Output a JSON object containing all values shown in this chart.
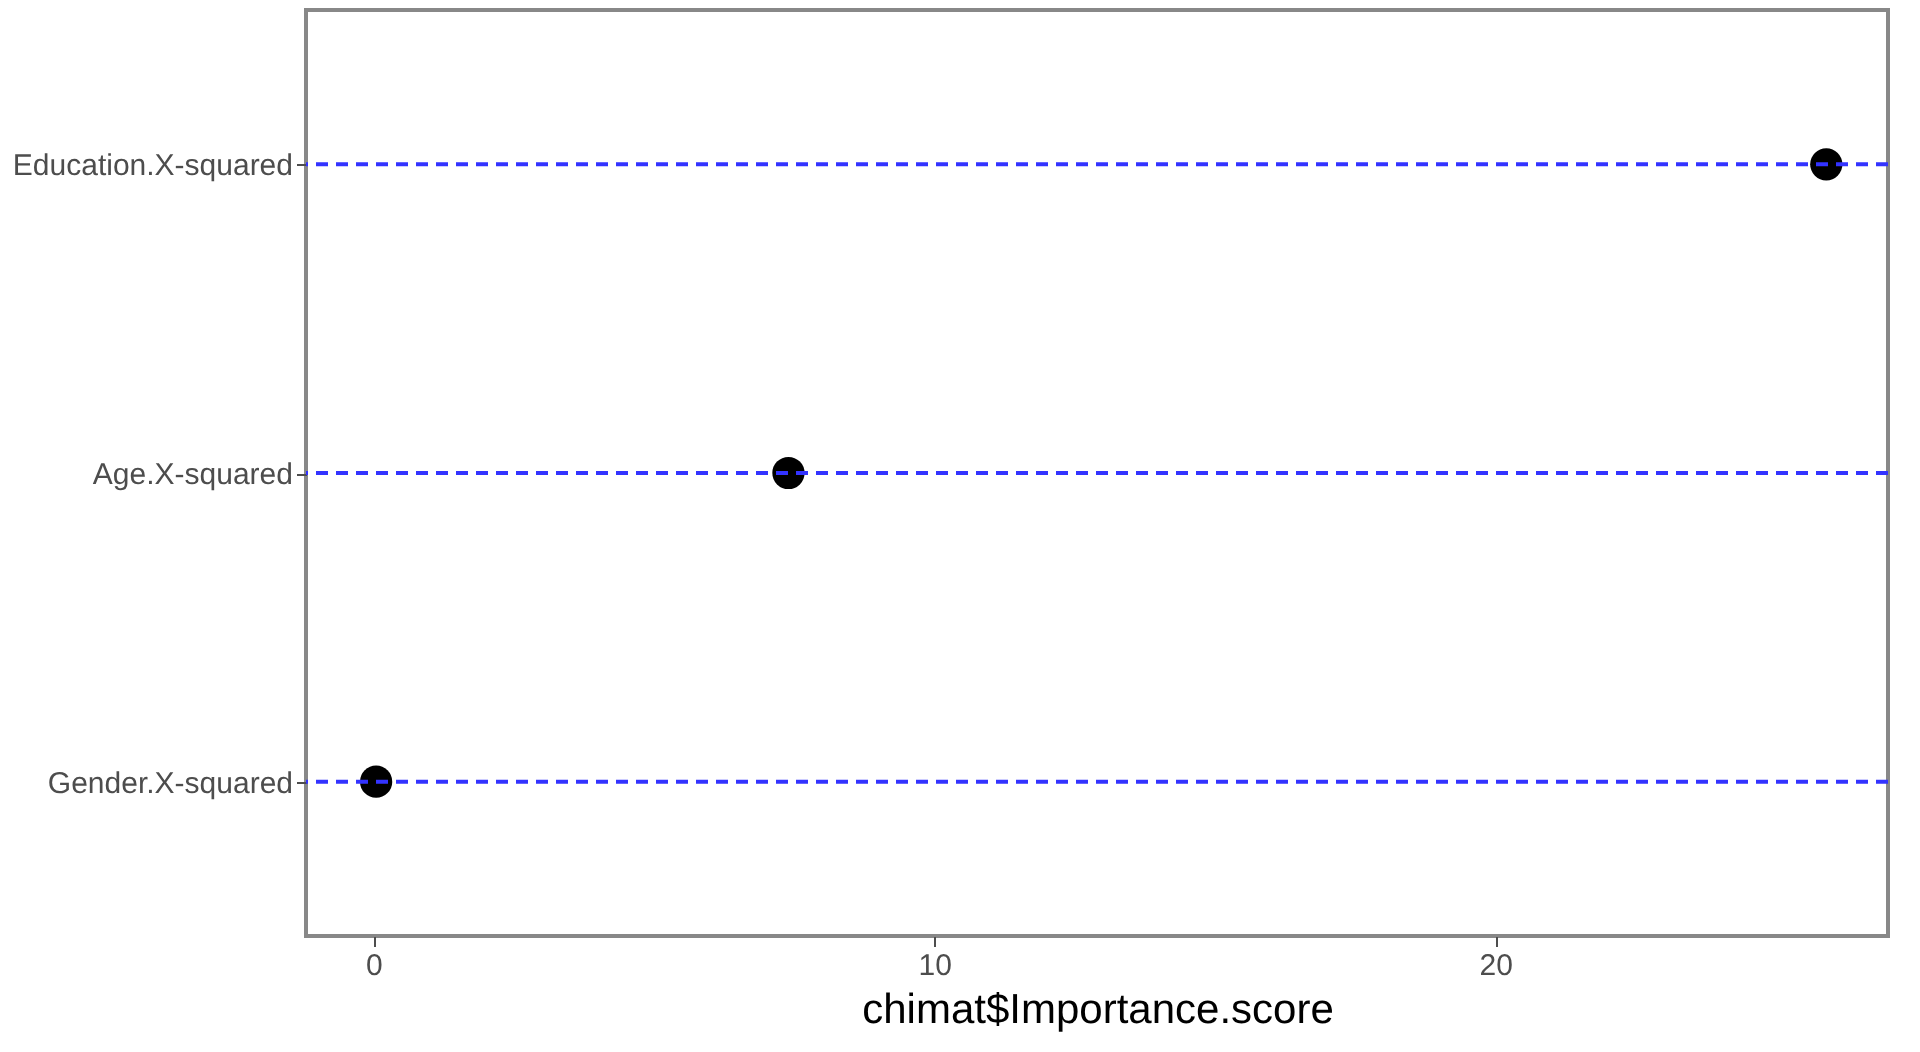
{
  "chart_data": {
    "type": "scatter",
    "orientation": "horizontal",
    "xlabel": "chimat$Importance.score",
    "categories": [
      "Education.X-squared",
      "Age.X-squared",
      "Gender.X-squared"
    ],
    "values": [
      25.9,
      7.4,
      0.05
    ],
    "color": "#000000",
    "marker": "circle",
    "xlim": [
      -1.2,
      27
    ],
    "xticks": [
      0,
      10,
      20
    ],
    "grid": false,
    "ref_lines": [
      {
        "axis": "y",
        "value": "Education.X-squared",
        "color": "#3333ff",
        "line_style": "dashed"
      },
      {
        "axis": "y",
        "value": "Age.X-squared",
        "color": "#3333ff",
        "line_style": "dashed"
      },
      {
        "axis": "y",
        "value": "Gender.X-squared",
        "color": "#3333ff",
        "line_style": "dashed"
      }
    ]
  }
}
